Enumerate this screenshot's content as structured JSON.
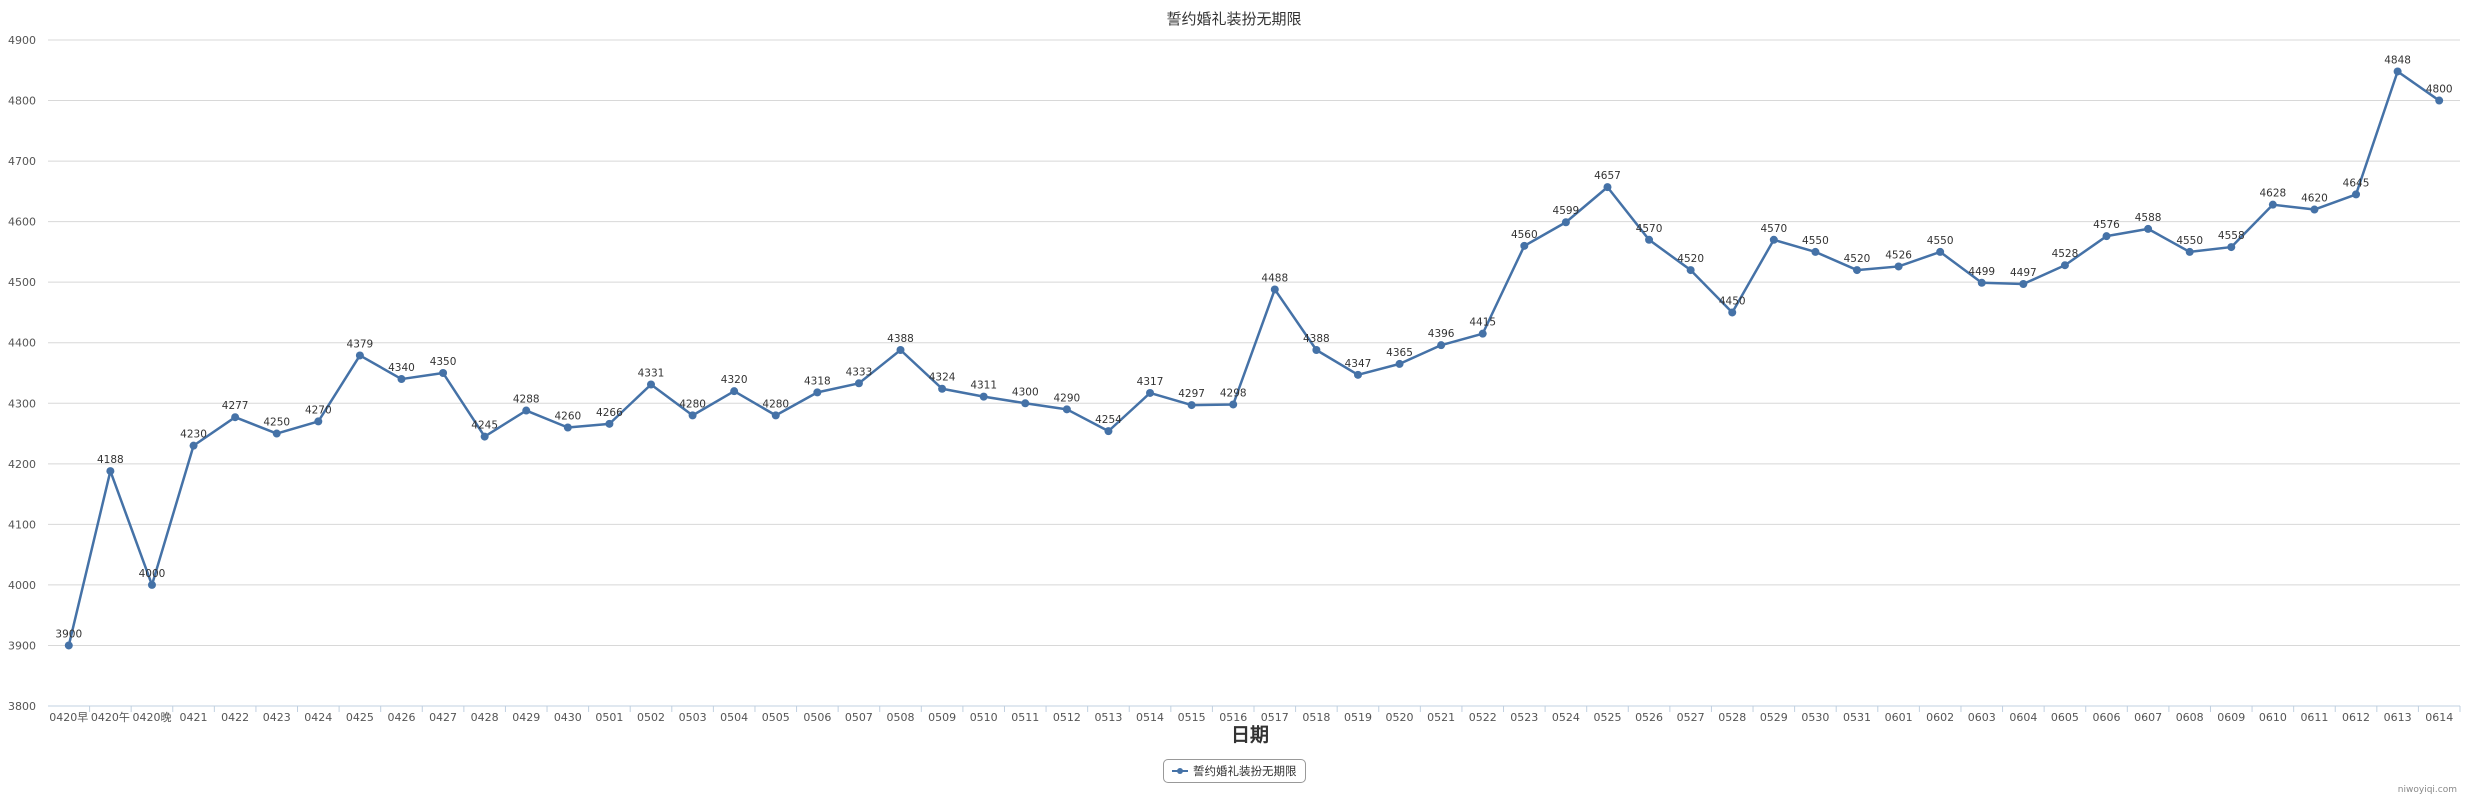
{
  "chart_data": {
    "type": "line",
    "title": "誓约婚礼装扮无期限",
    "xlabel": "日期",
    "ylabel": "",
    "ylim": [
      3800,
      4900
    ],
    "yticks": [
      3800,
      3900,
      4000,
      4100,
      4200,
      4300,
      4400,
      4500,
      4600,
      4700,
      4800,
      4900
    ],
    "grid": true,
    "legend_position": "bottom-center",
    "categories": [
      "0420早",
      "0420午",
      "0420晚",
      "0421",
      "0422",
      "0423",
      "0424",
      "0425",
      "0426",
      "0427",
      "0428",
      "0429",
      "0430",
      "0501",
      "0502",
      "0503",
      "0504",
      "0505",
      "0506",
      "0507",
      "0508",
      "0509",
      "0510",
      "0511",
      "0512",
      "0513",
      "0514",
      "0515",
      "0516",
      "0517",
      "0518",
      "0519",
      "0520",
      "0521",
      "0522",
      "0523",
      "0524",
      "0525",
      "0526",
      "0527",
      "0528",
      "0529",
      "0530",
      "0531",
      "0601",
      "0602",
      "0603",
      "0604",
      "0605",
      "0606",
      "0607",
      "0608",
      "0609",
      "0610",
      "0611",
      "0612",
      "0613",
      "0614"
    ],
    "series": [
      {
        "name": "誓约婚礼装扮无期限",
        "color": "#4572A7",
        "values": [
          3900,
          4188,
          4000,
          4230,
          4277,
          4250,
          4270,
          4379,
          4340,
          4350,
          4245,
          4288,
          4260,
          4266,
          4331,
          4280,
          4320,
          4280,
          4318,
          4333,
          4388,
          4324,
          4311,
          4300,
          4290,
          4254,
          4317,
          4297,
          4298,
          4488,
          4388,
          4347,
          4365,
          4396,
          4415,
          4560,
          4599,
          4657,
          4570,
          4520,
          4450,
          4570,
          4550,
          4520,
          4526,
          4550,
          4499,
          4497,
          4528,
          4576,
          4588,
          4550,
          4558,
          4628,
          4620,
          4645,
          4848,
          4800
        ]
      }
    ]
  },
  "credit": "niwoyiqi.com"
}
